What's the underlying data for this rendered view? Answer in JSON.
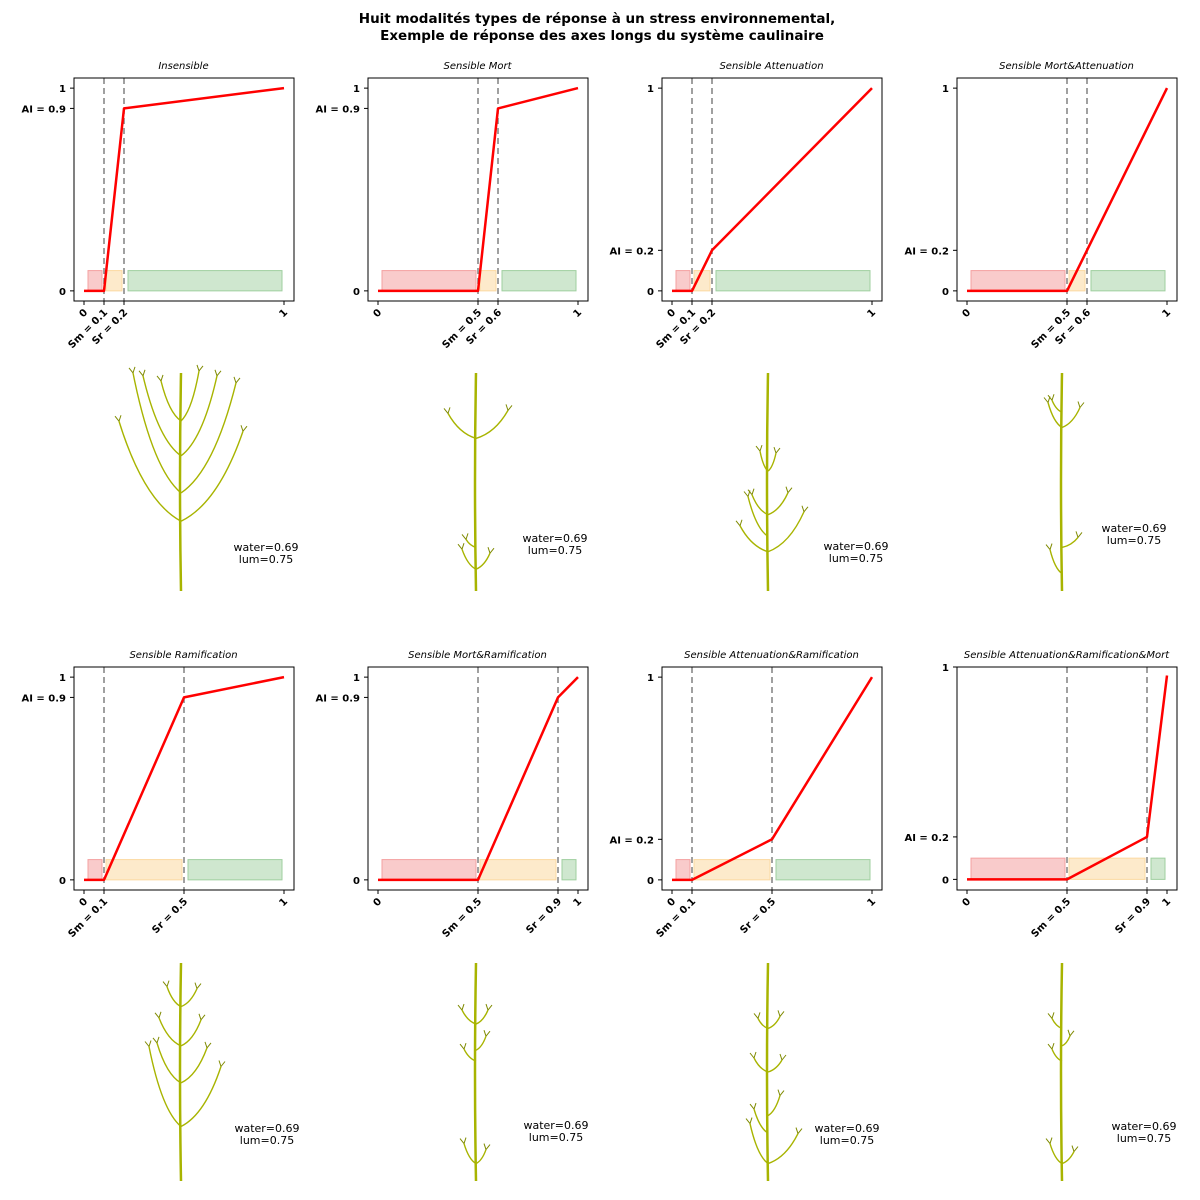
{
  "figure": {
    "title_line1": "Huit modalités types de réponse à un stress environnemental,",
    "title_line2": "Exemple de réponse des axes longs du système caulinaire"
  },
  "colors": {
    "curve": "#ff0000",
    "zone_dead": "#f4a0a0",
    "zone_attenuation": "#fcd9a0",
    "zone_ok": "#9fcf9f",
    "threshold_line": "#808080",
    "plant_stem": "#a8b400",
    "plant_dark": "#7f8a00"
  },
  "chart_data": [
    {
      "type": "line",
      "title": "Insensible",
      "points": [
        [
          0,
          0
        ],
        [
          0.1,
          0
        ],
        [
          0.2,
          0.9
        ],
        [
          1,
          1
        ]
      ],
      "sm": 0.1,
      "sr": 0.2,
      "ai": 0.9,
      "xticks": [
        {
          "v": 0,
          "label": "0"
        },
        {
          "v": 0.1,
          "label": "Sm = 0.1"
        },
        {
          "v": 0.2,
          "label": "Sr = 0.2"
        },
        {
          "v": 1,
          "label": "1"
        }
      ],
      "yticks": [
        {
          "v": 0,
          "label": "0"
        },
        {
          "v": 0.9,
          "label": "AI = 0.9"
        },
        {
          "v": 1,
          "label": "1"
        }
      ],
      "xlim": [
        -0.05,
        1.05
      ],
      "ylim": [
        -0.05,
        1.05
      ],
      "annotation": [
        "water=0.69",
        "lum=0.75"
      ]
    },
    {
      "type": "line",
      "title": "Sensible Mort",
      "points": [
        [
          0,
          0
        ],
        [
          0.5,
          0
        ],
        [
          0.6,
          0.9
        ],
        [
          1,
          1
        ]
      ],
      "sm": 0.5,
      "sr": 0.6,
      "ai": 0.9,
      "xticks": [
        {
          "v": 0,
          "label": "0"
        },
        {
          "v": 0.5,
          "label": "Sm = 0.5"
        },
        {
          "v": 0.6,
          "label": "Sr = 0.6"
        },
        {
          "v": 1,
          "label": "1"
        }
      ],
      "yticks": [
        {
          "v": 0,
          "label": "0"
        },
        {
          "v": 0.9,
          "label": "AI = 0.9"
        },
        {
          "v": 1,
          "label": "1"
        }
      ],
      "xlim": [
        -0.05,
        1.05
      ],
      "ylim": [
        -0.05,
        1.05
      ],
      "annotation": [
        "water=0.69",
        "lum=0.75"
      ]
    },
    {
      "type": "line",
      "title": "Sensible Attenuation",
      "points": [
        [
          0,
          0
        ],
        [
          0.1,
          0
        ],
        [
          0.2,
          0.2
        ],
        [
          1,
          1
        ]
      ],
      "sm": 0.1,
      "sr": 0.2,
      "ai": 0.2,
      "xticks": [
        {
          "v": 0,
          "label": "0"
        },
        {
          "v": 0.1,
          "label": "Sm = 0.1"
        },
        {
          "v": 0.2,
          "label": "Sr = 0.2"
        },
        {
          "v": 1,
          "label": "1"
        }
      ],
      "yticks": [
        {
          "v": 0,
          "label": "0"
        },
        {
          "v": 0.2,
          "label": "AI = 0.2"
        },
        {
          "v": 1,
          "label": "1"
        }
      ],
      "xlim": [
        -0.05,
        1.05
      ],
      "ylim": [
        -0.05,
        1.05
      ],
      "annotation": [
        "water=0.69",
        "lum=0.75"
      ]
    },
    {
      "type": "line",
      "title": "Sensible Mort&Attenuation",
      "points": [
        [
          0,
          0
        ],
        [
          0.5,
          0
        ],
        [
          0.6,
          0.2
        ],
        [
          1,
          1
        ]
      ],
      "sm": 0.5,
      "sr": 0.6,
      "ai": 0.2,
      "xticks": [
        {
          "v": 0,
          "label": "0"
        },
        {
          "v": 0.5,
          "label": "Sm = 0.5"
        },
        {
          "v": 0.6,
          "label": "Sr = 0.6"
        },
        {
          "v": 1,
          "label": "1"
        }
      ],
      "yticks": [
        {
          "v": 0,
          "label": "0"
        },
        {
          "v": 0.2,
          "label": "AI = 0.2"
        },
        {
          "v": 1,
          "label": "1"
        }
      ],
      "xlim": [
        -0.05,
        1.05
      ],
      "ylim": [
        -0.05,
        1.05
      ],
      "annotation": [
        "water=0.69",
        "lum=0.75"
      ]
    },
    {
      "type": "line",
      "title": "Sensible Ramification",
      "points": [
        [
          0,
          0
        ],
        [
          0.1,
          0
        ],
        [
          0.5,
          0.9
        ],
        [
          1,
          1
        ]
      ],
      "sm": 0.1,
      "sr": 0.5,
      "ai": 0.9,
      "xticks": [
        {
          "v": 0,
          "label": "0"
        },
        {
          "v": 0.1,
          "label": "Sm = 0.1"
        },
        {
          "v": 0.5,
          "label": "Sr = 0.5"
        },
        {
          "v": 1,
          "label": "1"
        }
      ],
      "yticks": [
        {
          "v": 0,
          "label": "0"
        },
        {
          "v": 0.9,
          "label": "AI = 0.9"
        },
        {
          "v": 1,
          "label": "1"
        }
      ],
      "xlim": [
        -0.05,
        1.05
      ],
      "ylim": [
        -0.05,
        1.05
      ],
      "annotation": [
        "water=0.69",
        "lum=0.75"
      ]
    },
    {
      "type": "line",
      "title": "Sensible Mort&Ramification",
      "points": [
        [
          0,
          0
        ],
        [
          0.5,
          0
        ],
        [
          0.9,
          0.9
        ],
        [
          1,
          1
        ]
      ],
      "sm": 0.5,
      "sr": 0.9,
      "ai": 0.9,
      "xticks": [
        {
          "v": 0,
          "label": "0"
        },
        {
          "v": 0.5,
          "label": "Sm = 0.5"
        },
        {
          "v": 0.9,
          "label": "Sr = 0.9"
        },
        {
          "v": 1,
          "label": "1"
        }
      ],
      "yticks": [
        {
          "v": 0,
          "label": "0"
        },
        {
          "v": 0.9,
          "label": "AI = 0.9"
        },
        {
          "v": 1,
          "label": "1"
        }
      ],
      "xlim": [
        -0.05,
        1.05
      ],
      "ylim": [
        -0.05,
        1.05
      ],
      "annotation": [
        "water=0.69",
        "lum=0.75"
      ]
    },
    {
      "type": "line",
      "title": "Sensible Attenuation&Ramification",
      "points": [
        [
          0,
          0
        ],
        [
          0.1,
          0
        ],
        [
          0.5,
          0.2
        ],
        [
          1,
          1
        ]
      ],
      "sm": 0.1,
      "sr": 0.5,
      "ai": 0.2,
      "xticks": [
        {
          "v": 0,
          "label": "0"
        },
        {
          "v": 0.1,
          "label": "Sm = 0.1"
        },
        {
          "v": 0.5,
          "label": "Sr = 0.5"
        },
        {
          "v": 1,
          "label": "1"
        }
      ],
      "yticks": [
        {
          "v": 0,
          "label": "0"
        },
        {
          "v": 0.2,
          "label": "AI = 0.2"
        },
        {
          "v": 1,
          "label": "1"
        }
      ],
      "xlim": [
        -0.05,
        1.05
      ],
      "ylim": [
        -0.05,
        1.05
      ],
      "annotation": [
        "water=0.69",
        "lum=0.75"
      ]
    },
    {
      "type": "line",
      "title": "Sensible Attenuation&Ramification&Mort",
      "points": [
        [
          0,
          0
        ],
        [
          0.5,
          0
        ],
        [
          0.9,
          0.2
        ],
        [
          1,
          0.96
        ]
      ],
      "sm": 0.5,
      "sr": 0.9,
      "ai": 0.2,
      "xticks": [
        {
          "v": 0,
          "label": "0"
        },
        {
          "v": 0.5,
          "label": "Sm = 0.5"
        },
        {
          "v": 0.9,
          "label": "Sr = 0.9"
        },
        {
          "v": 1,
          "label": "1"
        }
      ],
      "yticks": [
        {
          "v": 0,
          "label": "0"
        },
        {
          "v": 0.2,
          "label": "AI = 0.2"
        },
        {
          "v": 1,
          "label": "1"
        }
      ],
      "xlim": [
        -0.05,
        1.05
      ],
      "ylim": [
        -0.05,
        1.0
      ],
      "annotation": [
        "water=0.69",
        "lum=0.75"
      ]
    }
  ]
}
